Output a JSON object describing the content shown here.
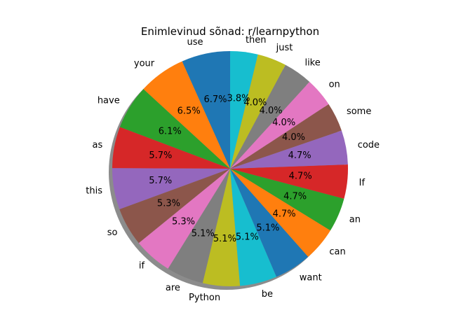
{
  "chart_data": {
    "type": "pie",
    "title": "Enimlevinud sõnad: r/learnpython",
    "start_angle_deg": 90,
    "direction": "counterclockwise",
    "shadow": true,
    "slices": [
      {
        "label": "use",
        "value": 6.7,
        "pct_label": "6.7%",
        "color": "#1f77b4"
      },
      {
        "label": "your",
        "value": 6.5,
        "pct_label": "6.5%",
        "color": "#ff7f0e"
      },
      {
        "label": "have",
        "value": 6.1,
        "pct_label": "6.1%",
        "color": "#2ca02c"
      },
      {
        "label": "as",
        "value": 5.7,
        "pct_label": "5.7%",
        "color": "#d62728"
      },
      {
        "label": "this",
        "value": 5.7,
        "pct_label": "5.7%",
        "color": "#9467bd"
      },
      {
        "label": "so",
        "value": 5.3,
        "pct_label": "5.3%",
        "color": "#8c564b"
      },
      {
        "label": "if",
        "value": 5.3,
        "pct_label": "5.3%",
        "color": "#e377c2"
      },
      {
        "label": "are",
        "value": 5.1,
        "pct_label": "5.1%",
        "color": "#7f7f7f"
      },
      {
        "label": "Python",
        "value": 5.1,
        "pct_label": "5.1%",
        "color": "#bcbd22"
      },
      {
        "label": "be",
        "value": 5.1,
        "pct_label": "5.1%",
        "color": "#17becf"
      },
      {
        "label": "want",
        "value": 5.1,
        "pct_label": "5.1%",
        "color": "#1f77b4"
      },
      {
        "label": "can",
        "value": 4.7,
        "pct_label": "4.7%",
        "color": "#ff7f0e"
      },
      {
        "label": "an",
        "value": 4.7,
        "pct_label": "4.7%",
        "color": "#2ca02c"
      },
      {
        "label": "If",
        "value": 4.7,
        "pct_label": "4.7%",
        "color": "#d62728"
      },
      {
        "label": "code",
        "value": 4.7,
        "pct_label": "4.7%",
        "color": "#9467bd"
      },
      {
        "label": "some",
        "value": 4.0,
        "pct_label": "4.0%",
        "color": "#8c564b"
      },
      {
        "label": "on",
        "value": 4.0,
        "pct_label": "4.0%",
        "color": "#e377c2"
      },
      {
        "label": "like",
        "value": 4.0,
        "pct_label": "4.0%",
        "color": "#7f7f7f"
      },
      {
        "label": "just",
        "value": 4.0,
        "pct_label": "4.0%",
        "color": "#bcbd22"
      },
      {
        "label": "then",
        "value": 3.8,
        "pct_label": "3.8%",
        "color": "#17becf"
      }
    ]
  }
}
